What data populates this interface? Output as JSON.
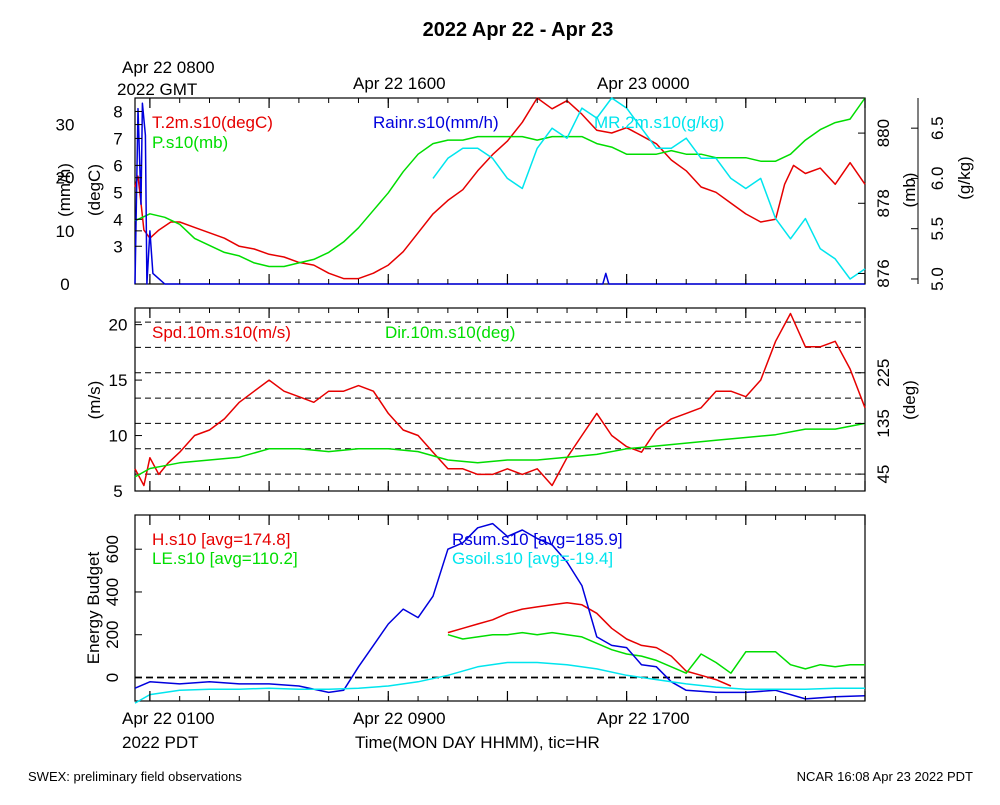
{
  "title": "2022 Apr 22 - Apr 23",
  "footer": {
    "left": "SWEX: preliminary field observations",
    "right": "NCAR 16:08 Apr 23 2022 PDT"
  },
  "top_time_axis": {
    "labels": [
      "Apr 22 0800",
      "Apr 22 1600",
      "Apr 23 0000"
    ],
    "year_label": "2022 GMT"
  },
  "bottom_time_axis": {
    "labels": [
      "Apr 22 0100",
      "Apr 22 0900",
      "Apr 22 1700"
    ],
    "year_label": "2022 PDT",
    "xlabel": "Time(MON DAY HHMM), tic=HR"
  },
  "colors": {
    "red": "#e60000",
    "green": "#00dd00",
    "blue": "#0000dd",
    "cyan": "#00e5ee",
    "black": "#000000"
  },
  "chart_data": [
    {
      "type": "line",
      "panel": "meteorology",
      "x_unit": "hours since Apr 22 0000 PDT",
      "xlim": [
        0.5,
        25.0
      ],
      "axes": {
        "rain": {
          "label": "(mm/h)",
          "ylim": [
            0,
            35
          ],
          "ticks": [
            0,
            10,
            20,
            30
          ]
        },
        "temp": {
          "label": "(degC)",
          "ylim": [
            1.6,
            8.5
          ],
          "ticks": [
            3,
            4,
            5,
            6,
            7,
            8
          ]
        },
        "pres": {
          "label": "(mb)",
          "ylim": [
            875.7,
            881.0
          ],
          "ticks": [
            876,
            878,
            880
          ]
        },
        "mr": {
          "label": "(g/kg)",
          "ylim": [
            4.95,
            6.8
          ],
          "ticks": [
            5.0,
            5.5,
            6.0,
            6.5
          ]
        }
      },
      "series": [
        {
          "name": "T.2m.s10(degC)",
          "axis": "temp",
          "color": "red",
          "x": [
            0.5,
            0.6,
            0.7,
            0.8,
            1,
            1.3,
            1.7,
            2,
            2.5,
            3,
            3.5,
            4,
            4.5,
            5,
            5.5,
            6,
            6.5,
            7,
            7.5,
            8,
            8.5,
            9,
            9.5,
            10,
            10.5,
            11,
            11.5,
            12,
            12.5,
            13,
            13.5,
            14,
            14.5,
            15,
            15.5,
            16,
            16.5,
            17,
            17.5,
            18,
            18.5,
            19,
            19.5,
            20,
            20.5,
            21,
            21.5,
            22,
            22.3,
            22.6,
            23,
            23.5,
            24,
            24.5,
            25
          ],
          "y": [
            5.2,
            5.6,
            4.6,
            3.6,
            3.3,
            3.6,
            3.9,
            3.9,
            3.7,
            3.5,
            3.3,
            3.0,
            2.9,
            2.7,
            2.6,
            2.4,
            2.3,
            2.0,
            1.8,
            1.8,
            2.0,
            2.3,
            2.8,
            3.5,
            4.2,
            4.7,
            5.1,
            5.8,
            6.4,
            6.9,
            7.6,
            8.5,
            8.1,
            8.4,
            7.9,
            7.3,
            7.2,
            7.4,
            7.1,
            6.8,
            6.2,
            5.8,
            5.2,
            5.0,
            4.6,
            4.2,
            3.9,
            4.0,
            5.3,
            6.0,
            5.7,
            5.9,
            5.3,
            6.1,
            5.3
          ]
        },
        {
          "name": "P.s10(mb)",
          "axis": "pres",
          "color": "green",
          "x": [
            0.5,
            1,
            1.5,
            2,
            2.5,
            3,
            3.5,
            4,
            4.5,
            5,
            5.5,
            6,
            6.5,
            7,
            7.5,
            8,
            8.5,
            9,
            9.5,
            10,
            10.5,
            11,
            11.5,
            12,
            12.5,
            13,
            13.5,
            14,
            14.5,
            15,
            15.5,
            16,
            16.5,
            17,
            17.5,
            18,
            18.5,
            19,
            19.5,
            20,
            20.5,
            21,
            21.5,
            22,
            22.5,
            23,
            23.5,
            24,
            24.5,
            25
          ],
          "y": [
            877.5,
            877.7,
            877.6,
            877.4,
            877.0,
            876.8,
            876.6,
            876.5,
            876.3,
            876.2,
            876.2,
            876.3,
            876.4,
            876.6,
            876.9,
            877.3,
            877.8,
            878.3,
            878.9,
            879.4,
            879.7,
            879.8,
            879.8,
            879.9,
            879.9,
            879.9,
            879.9,
            879.8,
            879.9,
            879.9,
            879.9,
            879.7,
            879.6,
            879.4,
            879.4,
            879.4,
            879.5,
            879.4,
            879.4,
            879.3,
            879.3,
            879.3,
            879.2,
            879.2,
            879.4,
            879.8,
            880.1,
            880.3,
            880.4,
            881.0
          ]
        },
        {
          "name": "MR.2m.s10(g/kg)",
          "axis": "mr",
          "color": "cyan",
          "x": [
            10.5,
            11,
            11.5,
            12,
            12.5,
            13,
            13.5,
            14,
            14.5,
            15,
            15.5,
            16,
            16.5,
            17,
            17.5,
            18,
            18.5,
            19,
            19.5,
            20,
            20.5,
            21,
            21.5,
            22,
            22.5,
            23,
            23.5,
            24,
            24.5,
            25
          ],
          "y": [
            6.0,
            6.2,
            6.3,
            6.3,
            6.2,
            6.0,
            5.9,
            6.3,
            6.5,
            6.4,
            6.7,
            6.6,
            6.8,
            6.7,
            6.5,
            6.3,
            6.3,
            6.4,
            6.2,
            6.2,
            6.0,
            5.9,
            6.0,
            5.6,
            5.4,
            5.6,
            5.3,
            5.2,
            5.0,
            5.1
          ]
        },
        {
          "name": "Rainr.s10(mm/h)",
          "axis": "rain",
          "color": "blue",
          "x": [
            0.5,
            0.6,
            0.7,
            0.75,
            0.85,
            0.9,
            1.0,
            1.1,
            1.3,
            1.5,
            2,
            5,
            10,
            15,
            16,
            16.2,
            16.3,
            16.4,
            17,
            20,
            25
          ],
          "y": [
            0,
            33,
            15,
            34,
            28,
            0,
            10,
            2,
            1,
            0,
            0,
            0,
            0,
            0,
            0,
            0,
            2,
            0,
            0,
            0,
            0
          ]
        }
      ]
    },
    {
      "type": "line",
      "panel": "wind",
      "x_unit": "hours since Apr 22 0000 PDT",
      "xlim": [
        0.5,
        25.0
      ],
      "axes": {
        "spd": {
          "label": "(m/s)",
          "ylim": [
            5,
            21.5
          ],
          "ticks": [
            5,
            10,
            15,
            20
          ]
        },
        "dir": {
          "label": "(deg)",
          "ylim": [
            15,
            340
          ],
          "ticks": [
            45,
            135,
            225
          ],
          "gridlines": [
            45,
            90,
            135,
            180,
            225,
            270,
            315
          ]
        }
      },
      "series": [
        {
          "name": "Spd.10m.s10(m/s)",
          "axis": "spd",
          "color": "red",
          "x": [
            0.5,
            0.8,
            1,
            1.3,
            1.6,
            2,
            2.5,
            3,
            3.5,
            4,
            4.5,
            5,
            5.5,
            6,
            6.5,
            7,
            7.5,
            8,
            8.5,
            9,
            9.5,
            10,
            10.5,
            11,
            11.5,
            12,
            12.5,
            13,
            13.5,
            14,
            14.5,
            15,
            15.5,
            16,
            16.5,
            17,
            17.5,
            18,
            18.5,
            19,
            19.5,
            20,
            20.5,
            21,
            21.5,
            22,
            22.5,
            23,
            23.5,
            24,
            24.5,
            25
          ],
          "y": [
            7,
            5.5,
            8,
            6.5,
            7.5,
            8.5,
            10,
            10.5,
            11.5,
            13,
            14,
            15,
            14,
            13.5,
            13,
            14,
            14,
            14.5,
            14,
            12,
            10.5,
            10,
            8.5,
            7,
            7,
            6.5,
            6.5,
            7,
            6.5,
            7,
            5.5,
            8,
            10,
            12,
            10,
            9,
            8.5,
            10.5,
            11.5,
            12,
            12.5,
            14,
            14,
            13.5,
            15,
            18.5,
            21,
            18,
            18,
            18.5,
            16,
            12.5
          ]
        },
        {
          "name": "Dir.10m.s10(deg)",
          "axis": "dir",
          "color": "green",
          "x": [
            0.5,
            1,
            1.5,
            2,
            3,
            4,
            5,
            6,
            7,
            8,
            9,
            10,
            11,
            12,
            13,
            14,
            15,
            16,
            17,
            18,
            19,
            20,
            21,
            22,
            23,
            24,
            25
          ],
          "y": [
            40,
            55,
            60,
            65,
            70,
            75,
            90,
            90,
            85,
            90,
            90,
            85,
            70,
            65,
            70,
            70,
            75,
            80,
            90,
            95,
            100,
            105,
            110,
            115,
            125,
            125,
            135
          ]
        }
      ]
    },
    {
      "type": "line",
      "panel": "energy",
      "x_unit": "hours since Apr 22 0000 PDT",
      "xlim": [
        0.5,
        25.0
      ],
      "ylabel": "Energy Budget",
      "ylim": [
        -110,
        760
      ],
      "ticks": [
        0,
        200,
        400,
        600
      ],
      "zero_line": true,
      "series": [
        {
          "name": "H.s10 [avg=174.8]",
          "color": "red",
          "x": [
            11,
            11.5,
            12,
            12.5,
            13,
            13.5,
            14,
            14.5,
            15,
            15.5,
            16,
            16.5,
            17,
            17.5,
            18,
            18.5,
            19,
            19.5,
            20,
            20.5
          ],
          "y": [
            210,
            230,
            250,
            270,
            300,
            320,
            330,
            340,
            350,
            340,
            300,
            230,
            180,
            150,
            140,
            100,
            30,
            10,
            -10,
            -40
          ]
        },
        {
          "name": "LE.s10 [avg=110.2]",
          "color": "green",
          "x": [
            11,
            11.5,
            12,
            12.5,
            13,
            13.5,
            14,
            14.5,
            15,
            15.5,
            16,
            16.5,
            17,
            17.5,
            18,
            18.5,
            19,
            19.5,
            20,
            20.5,
            21,
            22,
            22.5,
            23,
            23.5,
            24,
            24.5,
            25
          ],
          "y": [
            200,
            180,
            190,
            200,
            200,
            210,
            200,
            210,
            200,
            190,
            160,
            130,
            110,
            100,
            80,
            50,
            20,
            110,
            70,
            20,
            120,
            120,
            60,
            40,
            60,
            50,
            60,
            60
          ]
        },
        {
          "name": "Rsum.s10 [avg=185.9]",
          "color": "blue",
          "x": [
            0.5,
            1,
            2,
            3,
            4,
            5,
            6,
            7,
            7.5,
            8,
            8.5,
            9,
            9.5,
            10,
            10.5,
            11,
            11.5,
            12,
            12.5,
            13,
            13.5,
            14,
            14.5,
            15,
            15.5,
            16,
            16.5,
            17,
            17.5,
            18,
            18.5,
            19,
            20,
            21,
            22,
            23,
            24,
            25
          ],
          "y": [
            -50,
            -20,
            -30,
            -20,
            -30,
            -30,
            -40,
            -70,
            -60,
            50,
            150,
            250,
            320,
            280,
            380,
            600,
            630,
            700,
            720,
            660,
            690,
            650,
            620,
            540,
            430,
            190,
            150,
            140,
            60,
            50,
            -20,
            -60,
            -70,
            -70,
            -60,
            -100,
            -90,
            -85
          ]
        },
        {
          "name": "Gsoil.s10 [avg=-19.4]",
          "color": "cyan",
          "x": [
            0.5,
            1,
            2,
            3,
            4,
            5,
            6,
            7,
            8,
            9,
            10,
            11,
            12,
            13,
            14,
            15,
            16,
            17,
            18,
            19,
            20,
            21,
            22,
            23,
            24,
            25
          ],
          "y": [
            -120,
            -80,
            -60,
            -55,
            -55,
            -50,
            -55,
            -55,
            -50,
            -40,
            -20,
            10,
            50,
            70,
            70,
            60,
            40,
            10,
            -10,
            -30,
            -45,
            -55,
            -55,
            -55,
            -50,
            -50
          ]
        }
      ]
    }
  ]
}
